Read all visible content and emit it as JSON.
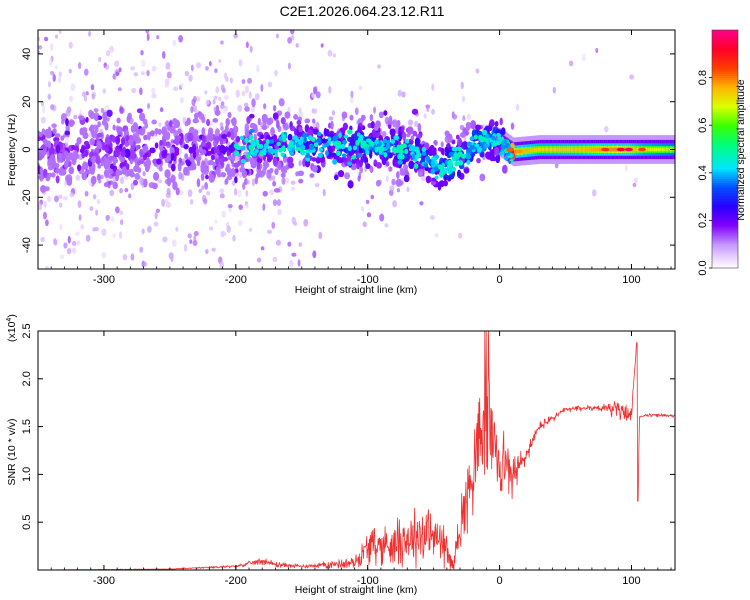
{
  "chart_data": [
    {
      "type": "heatmap",
      "title": "C2E1.2026.064.23.12.R11",
      "xlabel": "Height of straight line (km)",
      "ylabel": "Frequency (Hz)",
      "xlim": [
        -350,
        133
      ],
      "ylim": [
        -50,
        50
      ],
      "x_ticks": [
        -300,
        -200,
        -100,
        0,
        100
      ],
      "y_ticks": [
        -40,
        -20,
        0,
        20,
        40
      ],
      "colorbar": {
        "label": "Normalized spectral amplitude",
        "range": [
          0,
          1
        ],
        "ticks": [
          "0.0",
          "0.2",
          "0.4",
          "0.6",
          "0.8"
        ],
        "tick_values": [
          0,
          0.2,
          0.4,
          0.6,
          0.8
        ],
        "colors": [
          "#ffffff",
          "#e9d2ff",
          "#8000ff",
          "#0000ff",
          "#00ffff",
          "#00ff00",
          "#ffff00",
          "#ff8000",
          "#ff0000",
          "#ff0080"
        ]
      },
      "ridge": {
        "x": [
          -350,
          -300,
          -250,
          -200,
          -150,
          -100,
          -80,
          -60,
          -50,
          -45,
          -40,
          -30,
          -20,
          -10,
          0,
          10,
          30,
          60,
          90,
          110,
          133
        ],
        "freq": [
          0,
          1,
          0,
          0,
          2,
          2,
          1,
          -2,
          -6,
          -8,
          -7,
          -3,
          2,
          4,
          3,
          -1,
          0,
          0,
          0,
          0,
          0
        ],
        "amplitude": [
          0.12,
          0.15,
          0.14,
          0.16,
          0.22,
          0.3,
          0.28,
          0.28,
          0.34,
          0.38,
          0.4,
          0.38,
          0.36,
          0.38,
          0.42,
          0.78,
          0.72,
          0.74,
          0.8,
          0.7,
          0.65
        ]
      }
    },
    {
      "type": "line",
      "xlabel": "Height of straight line (km)",
      "ylabel": "SNR (10 * v/v)",
      "y_scale_label": "(x10",
      "y_scale_exp": "4",
      "y_scale_close": ")",
      "xlim": [
        -350,
        133
      ],
      "ylim": [
        0,
        2.5
      ],
      "x_ticks": [
        -300,
        -200,
        -100,
        0,
        100
      ],
      "y_ticks": [
        0.5,
        1.0,
        1.5,
        2.0,
        2.5
      ],
      "y_tick_labels": [
        "0.5",
        "1.0",
        "1.5",
        "2.0",
        "2.5"
      ],
      "series": [
        {
          "name": "SNR",
          "color": "#ee3030",
          "x": [
            -350,
            -250,
            -200,
            -180,
            -170,
            -150,
            -110,
            -100,
            -80,
            -60,
            -45,
            -35,
            -30,
            -20,
            -10,
            0,
            10,
            20,
            30,
            50,
            70,
            80,
            90,
            100,
            104,
            105,
            106,
            110,
            120,
            133
          ],
          "y": [
            0.0,
            0.01,
            0.04,
            0.1,
            0.06,
            0.04,
            0.08,
            0.25,
            0.3,
            0.4,
            0.35,
            0.05,
            0.5,
            1.1,
            1.6,
            1.2,
            1.0,
            1.2,
            1.5,
            1.68,
            1.7,
            1.7,
            1.68,
            1.62,
            2.4,
            0.7,
            1.6,
            1.62,
            1.62,
            1.62
          ],
          "spike_amplitude": [
            0.0,
            0.005,
            0.015,
            0.04,
            0.03,
            0.02,
            0.06,
            0.18,
            0.25,
            0.35,
            0.3,
            0.05,
            0.3,
            0.5,
            0.6,
            0.45,
            0.25,
            0.1,
            0.06,
            0.03,
            0.03,
            0.06,
            0.1,
            0.08,
            0.0,
            0.0,
            0.0,
            0.02,
            0.02,
            0.02
          ],
          "peak": {
            "x": -10,
            "y": 2.5
          }
        }
      ]
    }
  ]
}
